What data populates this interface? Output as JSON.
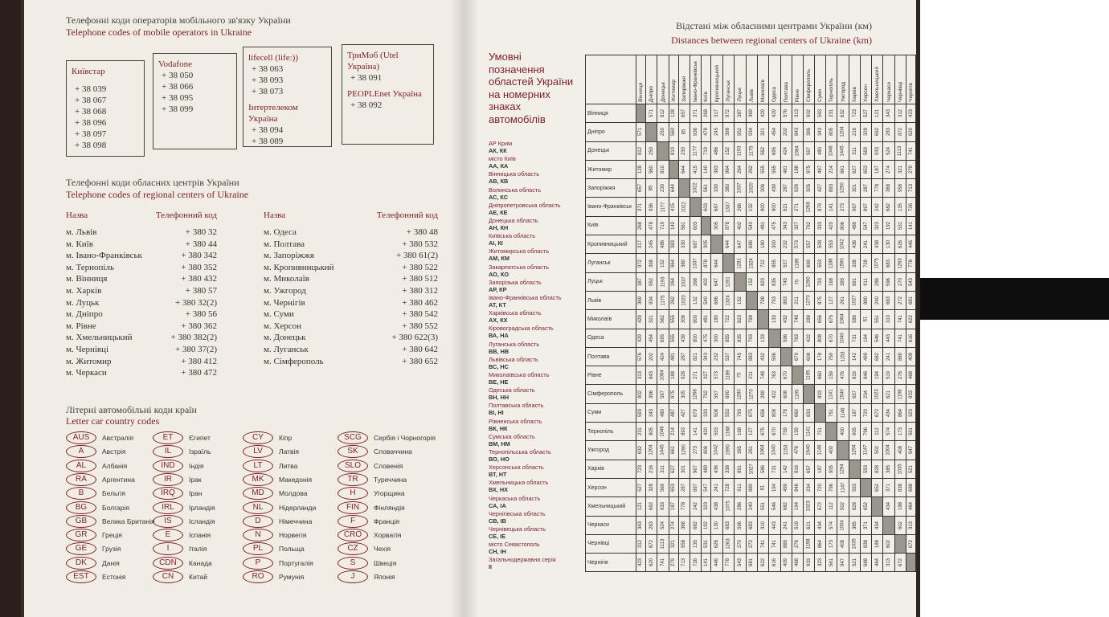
{
  "left_page": {
    "mobile": {
      "title_uk": "Телефонні коди операторів мобільного зв'язку України",
      "title_en": "Telephone codes of mobile operators in Ukraine",
      "boxes": [
        [
          {
            "name": "Київстар",
            "codes": [
              "+ 38 039",
              "+ 38 067",
              "+ 38 068",
              "+ 38 096",
              "+ 38 097",
              "+ 38 098"
            ]
          }
        ],
        [
          {
            "name": "Vodafone",
            "codes": [
              "+ 38 050",
              "+ 38 066",
              "+ 38 095",
              "+ 38 099"
            ]
          }
        ],
        [
          {
            "name": "lifecell (life:))",
            "codes": [
              "+ 38 063",
              "+ 38 093",
              "+ 38 073"
            ]
          },
          {
            "name": "Інтертелеком Україна",
            "codes": [
              "+ 38 094",
              "+ 38 089"
            ]
          }
        ],
        [
          {
            "name": "ТриМоб (Utel Україна)",
            "codes": [
              "+ 38 091"
            ]
          },
          {
            "name": "PEOPLEnet Україна",
            "codes": [
              "+ 38 092"
            ]
          }
        ]
      ]
    },
    "regional": {
      "title_uk": "Телефонні коди обласних центрів України",
      "title_en": "Telephone codes of regional centers of Ukraine",
      "header_name": "Назва",
      "header_code": "Телефонний код",
      "columns": [
        [
          [
            "м. Львів",
            "+ 380 32"
          ],
          [
            "м. Київ",
            "+ 380 44"
          ],
          [
            "м. Івано-Франківськ",
            "+ 380 342"
          ],
          [
            "м. Тернопіль",
            "+ 380 352"
          ],
          [
            "м. Вінниця",
            "+ 380 432"
          ],
          [
            "м. Харків",
            "+ 380 57"
          ],
          [
            "м. Луцьк",
            "+ 380 32(2)"
          ],
          [
            "м. Дніпро",
            "+ 380 56"
          ],
          [
            "м. Рівне",
            "+ 380 362"
          ],
          [
            "м. Хмельницький",
            "+ 380 382(2)"
          ],
          [
            "м. Чернівці",
            "+ 380 37(2)"
          ],
          [
            "м. Житомир",
            "+ 380 412"
          ],
          [
            "м. Черкаси",
            "+ 380 472"
          ]
        ],
        [
          [
            "м. Одеса",
            "+ 380 48"
          ],
          [
            "м. Полтава",
            "+ 380 532"
          ],
          [
            "м. Запоріжжя",
            "+ 380 61(2)"
          ],
          [
            "м. Кропивницький",
            "+ 380 522"
          ],
          [
            "м. Миколаїв",
            "+ 380 512"
          ],
          [
            "м. Ужгород",
            "+ 380 312"
          ],
          [
            "м. Чернігів",
            "+ 380 462"
          ],
          [
            "м. Суми",
            "+ 380 542"
          ],
          [
            "м. Херсон",
            "+ 380 552"
          ],
          [
            "м. Донецьк",
            "+ 380 622(3)"
          ],
          [
            "м. Луганськ",
            "+ 380 642"
          ],
          [
            "м. Сімферополь",
            "+ 380 652"
          ]
        ]
      ]
    },
    "letter": {
      "title_uk": "Літерні автомобільні коди країн",
      "title_en": "Letter car country codes",
      "columns": [
        [
          [
            "AUS",
            "Австралія"
          ],
          [
            "A",
            "Австрія"
          ],
          [
            "AL",
            "Албанія"
          ],
          [
            "RA",
            "Аргентина"
          ],
          [
            "B",
            "Бельгія"
          ],
          [
            "BG",
            "Болгарія"
          ],
          [
            "GB",
            "Велика Британія"
          ],
          [
            "GR",
            "Греція"
          ],
          [
            "GE",
            "Грузія"
          ],
          [
            "DK",
            "Данія"
          ],
          [
            "EST",
            "Естонія"
          ]
        ],
        [
          [
            "ET",
            "Єгипет"
          ],
          [
            "IL",
            "Ізраїль"
          ],
          [
            "IND",
            "Індія"
          ],
          [
            "IR",
            "Ірак"
          ],
          [
            "IRQ",
            "Іран"
          ],
          [
            "IRL",
            "Ірландія"
          ],
          [
            "IS",
            "Ісландія"
          ],
          [
            "E",
            "Іспанія"
          ],
          [
            "I",
            "Італія"
          ],
          [
            "CDN",
            "Канада"
          ],
          [
            "CN",
            "Китай"
          ]
        ],
        [
          [
            "CY",
            "Кіпр"
          ],
          [
            "LV",
            "Латвія"
          ],
          [
            "LT",
            "Литва"
          ],
          [
            "MK",
            "Македонія"
          ],
          [
            "MD",
            "Молдова"
          ],
          [
            "NL",
            "Нідерланди"
          ],
          [
            "D",
            "Німеччина"
          ],
          [
            "N",
            "Норвегія"
          ],
          [
            "PL",
            "Польща"
          ],
          [
            "P",
            "Португалія"
          ],
          [
            "RO",
            "Румунія"
          ]
        ],
        [
          [
            "SCG",
            "Сербія і Чорногорія"
          ],
          [
            "SK",
            "Словаччина"
          ],
          [
            "SLO",
            "Словенія"
          ],
          [
            "TR",
            "Туреччина"
          ],
          [
            "H",
            "Угорщина"
          ],
          [
            "FIN",
            "Фінляндія"
          ],
          [
            "F",
            "Франція"
          ],
          [
            "CRO",
            "Хорватія"
          ],
          [
            "CZ",
            "Чехія"
          ],
          [
            "S",
            "Швеція"
          ],
          [
            "J",
            "Японія"
          ]
        ]
      ]
    }
  },
  "right_page": {
    "title_uk": "Відстані між обласними центрами України (км)",
    "title_en": "Distances between regional centers of Ukraine (km)",
    "plates": {
      "title": "Умовні позначення областей України на номерних знаках автомобілів",
      "items": [
        [
          "АР Крим",
          "АК, КК"
        ],
        [
          "місто Київ",
          "АА, КА"
        ],
        [
          "Вінницька область",
          "АВ, КВ"
        ],
        [
          "Волинська область",
          "АС, КС"
        ],
        [
          "Дніпропетровська область",
          "АЕ, КЕ"
        ],
        [
          "Донецька область",
          "АН, КН"
        ],
        [
          "Київська область",
          "АІ, КІ"
        ],
        [
          "Житомирська область",
          "АМ, КМ"
        ],
        [
          "Закарпатська область",
          "АО, КО"
        ],
        [
          "Запорізька область",
          "АР, КР"
        ],
        [
          "Івано-Франківська область",
          "АТ, КТ"
        ],
        [
          "Харківська область",
          "АХ, КХ"
        ],
        [
          "Кіровоградська область",
          "ВА, НА"
        ],
        [
          "Луганська область",
          "ВВ, НВ"
        ],
        [
          "Львівська область",
          "ВС, НС"
        ],
        [
          "Миколаївська область",
          "ВЕ, НЕ"
        ],
        [
          "Одеська область",
          "ВН, НН"
        ],
        [
          "Полтавська область",
          "ВІ, НІ"
        ],
        [
          "Рівненська область",
          "ВК, НК"
        ],
        [
          "Сумська область",
          "ВМ, НМ"
        ],
        [
          "Тернопільська область",
          "ВО, НО"
        ],
        [
          "Херсонська область",
          "ВТ, НТ"
        ],
        [
          "Хмельницька область",
          "ВХ, НХ"
        ],
        [
          "Черкаська область",
          "СА, ІА"
        ],
        [
          "Чернігівська область",
          "СВ, ІВ"
        ],
        [
          "Чернівецька область",
          "СЕ, ІЕ"
        ],
        [
          "місто Севастополь",
          "СН, ІН"
        ],
        [
          "Загальнодержавна серія",
          "II"
        ]
      ]
    },
    "distances": {
      "cities": [
        "Вінниця",
        "Дніпро",
        "Донецьк",
        "Житомир",
        "Запоріжжя",
        "Івано-Франківськ",
        "Київ",
        "Кропивницький",
        "Луганськ",
        "Луцьк",
        "Львів",
        "Миколаїв",
        "Одеса",
        "Полтава",
        "Рівне",
        "Сімферополь",
        "Суми",
        "Тернопіль",
        "Ужгород",
        "Харків",
        "Херсон",
        "Хмельницький",
        "Черкаси",
        "Чернівці",
        "Чернігів"
      ],
      "rows": [
        [],
        [
          571
        ],
        [
          812,
          250
        ],
        [
          128,
          560,
          810
        ],
        [
          657,
          85,
          230,
          644
        ],
        [
          371,
          936,
          1177,
          415,
          1022
        ],
        [
          268,
          478,
          719,
          140,
          561,
          603
        ],
        [
          317,
          245,
          486,
          383,
          330,
          687,
          305
        ],
        [
          972,
          398,
          152,
          964,
          380,
          1337,
          878,
          644
        ],
        [
          387,
          952,
          1193,
          264,
          1037,
          266,
          402,
          647,
          1281
        ],
        [
          369,
          934,
          1175,
          262,
          1020,
          132,
          540,
          686,
          1324,
          152
        ],
        [
          429,
          321,
          562,
          555,
          306,
          800,
          481,
          180,
          722,
          823,
          798
        ],
        [
          429,
          454,
          695,
          555,
          439,
          800,
          475,
          300,
          855,
          835,
          793,
          133
        ],
        [
          576,
          202,
          424,
          481,
          287,
          821,
          343,
          232,
          537,
          745,
          883,
          432,
          596
        ],
        [
          313,
          843,
          1084,
          188,
          928,
          271,
          327,
          573,
          1189,
          70,
          211,
          748,
          763,
          670
        ],
        [
          902,
          396,
          597,
          975,
          305,
          1268,
          792,
          557,
          690,
          1280,
          1270,
          289,
          422,
          608,
          1195
        ],
        [
          593,
          343,
          480,
          487,
          427,
          879,
          333,
          508,
          553,
          793,
          875,
          656,
          808,
          178,
          660,
          833
        ],
        [
          231,
          805,
          1046,
          214,
          893,
          141,
          420,
          553,
          1188,
          168,
          127,
          675,
          670,
          759,
          159,
          1141,
          751
        ],
        [
          632,
          1204,
          1445,
          661,
          1290,
          273,
          806,
          1042,
          1590,
          395,
          261,
          1064,
          1040,
          1153,
          476,
          1540,
          1146,
          400
        ],
        [
          723,
          216,
          311,
          627,
          301,
          967,
          489,
          436,
          338,
          891,
          1027,
          586,
          731,
          142,
          816,
          657,
          187,
          905,
          1294
        ],
        [
          527,
          328,
          569,
          653,
          287,
          897,
          547,
          241,
          728,
          911,
          880,
          61,
          194,
          499,
          846,
          234,
          720,
          796,
          1147,
          593
        ],
        [
          121,
          692,
          933,
          187,
          778,
          242,
          323,
          438,
          1075,
          286,
          240,
          551,
          546,
          682,
          194,
          1023,
          672,
          112,
          502,
          828,
          652
        ],
        [
          343,
          283,
          524,
          274,
          368,
          682,
          192,
          130,
          683,
          596,
          683,
          310,
          443,
          241,
          519,
          621,
          434,
          574,
          1004,
          385,
          371,
          434
        ],
        [
          312,
          872,
          1113,
          321,
          958,
          135,
          531,
          626,
          1263,
          270,
          272,
          741,
          741,
          889,
          276,
          1198,
          864,
          173,
          408,
          1035,
          838,
          188,
          602
        ],
        [
          423,
          620,
          741,
          279,
          713,
          726,
          141,
          446,
          778,
          543,
          681,
          622,
          616,
          409,
          468,
          933,
          323,
          561,
          947,
          521,
          688,
          464,
          313,
          672
        ]
      ]
    }
  }
}
